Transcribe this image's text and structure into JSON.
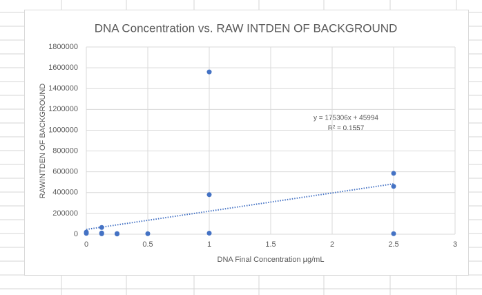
{
  "chart_data": {
    "type": "scatter",
    "title": "DNA Concentration vs. RAW INTDEN OF BACKGROUND",
    "x_label": "DNA Final Concentration µg/mL",
    "y_label": "RAWINTDEN OF BACKGROUND",
    "x": [
      0,
      0,
      0.125,
      0.125,
      0.125,
      0.25,
      0.25,
      0.5,
      1,
      1,
      1,
      2.5,
      2.5,
      2.5
    ],
    "values": [
      20000,
      8000,
      65000,
      12000,
      4000,
      6000,
      2000,
      5000,
      1560000,
      380000,
      10000,
      585000,
      460000,
      5000
    ],
    "color": "#4472c4",
    "xlim": [
      0,
      3
    ],
    "xticks": [
      0,
      0.5,
      1,
      1.5,
      2,
      2.5,
      3
    ],
    "ylim": [
      0,
      1800000
    ],
    "yticks": [
      0,
      200000,
      400000,
      600000,
      800000,
      1000000,
      1200000,
      1400000,
      1600000,
      1800000
    ],
    "grid": true,
    "trendline": {
      "equation": "y = 175306x + 45994",
      "r_squared_label": "R² = 0.1557",
      "slope": 175306,
      "intercept": 45994
    }
  }
}
